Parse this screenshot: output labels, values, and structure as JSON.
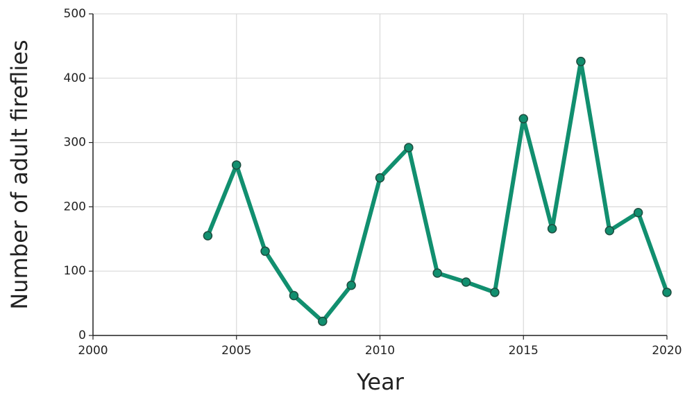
{
  "chart_data": {
    "type": "line",
    "xlabel": "Year",
    "ylabel": "Number of adult fireflies",
    "x": [
      2004,
      2005,
      2006,
      2007,
      2008,
      2009,
      2010,
      2011,
      2012,
      2013,
      2014,
      2015,
      2016,
      2017,
      2018,
      2019,
      2020
    ],
    "series": [
      {
        "name": "Fireflies",
        "color": "#118f6f",
        "values": [
          155,
          265,
          131,
          62,
          22,
          78,
          245,
          292,
          97,
          83,
          67,
          337,
          166,
          426,
          163,
          191,
          67
        ]
      }
    ],
    "xlim": [
      2000,
      2020
    ],
    "xticks": [
      2000,
      2005,
      2010,
      2015,
      2020
    ],
    "ylim": [
      0,
      500
    ],
    "yticks": [
      0,
      100,
      200,
      300,
      400,
      500
    ],
    "grid": true
  }
}
